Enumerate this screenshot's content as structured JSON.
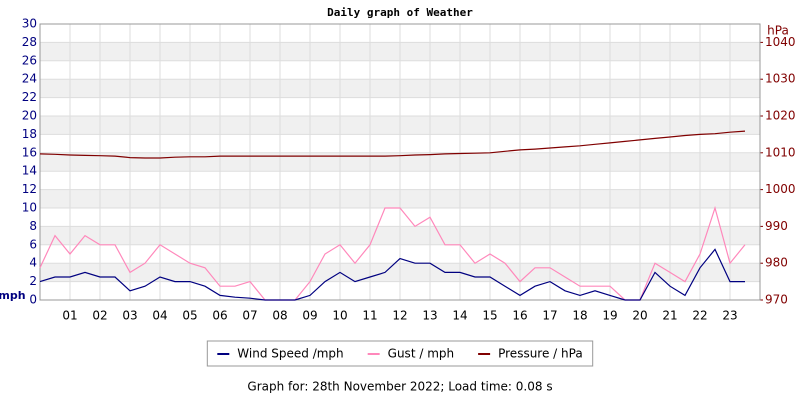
{
  "chart_data": {
    "type": "line",
    "title": "Daily graph of Weather",
    "y_label": "mph",
    "y2_label": "hPa",
    "x": [
      0,
      0.5,
      1,
      1.5,
      2,
      2.5,
      3,
      3.5,
      4,
      4.5,
      5,
      5.5,
      6,
      6.5,
      7,
      7.5,
      8,
      8.5,
      9,
      9.5,
      10,
      10.5,
      11,
      11.5,
      12,
      12.5,
      13,
      13.5,
      14,
      14.5,
      15,
      15.5,
      16,
      16.5,
      17,
      17.5,
      18,
      18.5,
      19,
      19.5,
      20,
      20.5,
      21,
      21.5,
      22,
      22.5,
      23,
      23.5
    ],
    "xlim": [
      0,
      24
    ],
    "xticks": [
      {
        "value": 1,
        "label": "01"
      },
      {
        "value": 2,
        "label": "02"
      },
      {
        "value": 3,
        "label": "03"
      },
      {
        "value": 4,
        "label": "04"
      },
      {
        "value": 5,
        "label": "05"
      },
      {
        "value": 6,
        "label": "06"
      },
      {
        "value": 7,
        "label": "07"
      },
      {
        "value": 8,
        "label": "08"
      },
      {
        "value": 9,
        "label": "09"
      },
      {
        "value": 10,
        "label": "10"
      },
      {
        "value": 11,
        "label": "11"
      },
      {
        "value": 12,
        "label": "12"
      },
      {
        "value": 13,
        "label": "13"
      },
      {
        "value": 14,
        "label": "14"
      },
      {
        "value": 15,
        "label": "15"
      },
      {
        "value": 16,
        "label": "16"
      },
      {
        "value": 17,
        "label": "17"
      },
      {
        "value": 18,
        "label": "18"
      },
      {
        "value": 19,
        "label": "19"
      },
      {
        "value": 20,
        "label": "20"
      },
      {
        "value": 21,
        "label": "21"
      },
      {
        "value": 22,
        "label": "22"
      },
      {
        "value": 23,
        "label": "23"
      }
    ],
    "ylim": [
      0,
      30
    ],
    "yticks": [
      0,
      2,
      4,
      6,
      8,
      10,
      12,
      14,
      16,
      18,
      20,
      22,
      24,
      26,
      28,
      30
    ],
    "y2lim": [
      970,
      1045
    ],
    "y2ticks": [
      970,
      980,
      990,
      1000,
      1010,
      1020,
      1030,
      1040
    ],
    "grid": true,
    "bands": true,
    "legend": "bottom",
    "series": [
      {
        "name": "Wind Speed /mph",
        "color": "#000080",
        "values": [
          2,
          2.5,
          2.5,
          3,
          2.5,
          2.5,
          1,
          1.5,
          2.5,
          2,
          2,
          1.5,
          0.5,
          0.3,
          0.2,
          0,
          0,
          0,
          0.5,
          2,
          3,
          2,
          2.5,
          3,
          4.5,
          4,
          4,
          3,
          3,
          2.5,
          2.5,
          1.5,
          0.5,
          1.5,
          2,
          1,
          0.5,
          1,
          0.5,
          0,
          0,
          3,
          1.5,
          0.5,
          3.5,
          5.5,
          2,
          2
        ]
      },
      {
        "name": "Gust / mph",
        "color": "#ff88bb",
        "values": [
          3.5,
          7,
          5,
          7,
          6,
          6,
          3,
          4,
          6,
          5,
          4,
          3.5,
          1.5,
          1.5,
          2,
          0,
          0,
          0,
          2,
          5,
          6,
          4,
          6,
          10,
          10,
          8,
          9,
          6,
          6,
          4,
          5,
          4,
          2,
          3.5,
          3.5,
          2.5,
          1.5,
          1.5,
          1.5,
          0,
          0,
          4,
          3,
          2,
          5,
          10,
          4,
          6
        ]
      },
      {
        "name": "Pressure / hPa",
        "color": "#800000",
        "axis": "y2",
        "values": [
          1009.7,
          1009.6,
          1009.4,
          1009.3,
          1009.2,
          1009.1,
          1008.7,
          1008.6,
          1008.6,
          1008.8,
          1008.9,
          1008.9,
          1009.1,
          1009.1,
          1009.1,
          1009.1,
          1009.1,
          1009.1,
          1009.1,
          1009.1,
          1009.1,
          1009.1,
          1009.1,
          1009.1,
          1009.2,
          1009.4,
          1009.5,
          1009.7,
          1009.8,
          1009.9,
          1010,
          1010.4,
          1010.8,
          1011,
          1011.3,
          1011.6,
          1011.9,
          1012.3,
          1012.7,
          1013.1,
          1013.5,
          1013.9,
          1014.3,
          1014.7,
          1015,
          1015.2,
          1015.6,
          1015.9
        ]
      }
    ]
  },
  "footer": "Graph for: 28th November 2022; Load time: 0.08 s"
}
